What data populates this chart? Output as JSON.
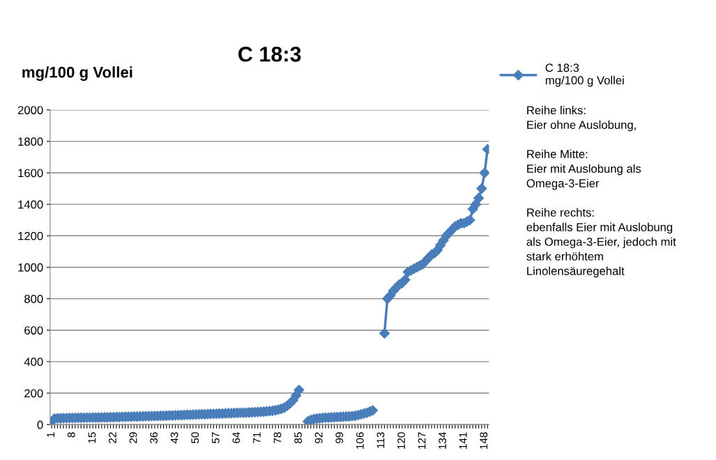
{
  "chart_data": {
    "type": "line",
    "title": "C 18:3",
    "ylabel": "mg/100 g Vollei",
    "categories": [
      "1",
      null,
      null,
      null,
      null,
      null,
      null,
      "8",
      null,
      null,
      null,
      null,
      null,
      null,
      "15",
      null,
      null,
      null,
      null,
      null,
      null,
      "22",
      null,
      null,
      null,
      null,
      null,
      null,
      "29",
      null,
      null,
      null,
      null,
      null,
      null,
      "36",
      null,
      null,
      null,
      null,
      null,
      null,
      "43",
      null,
      null,
      null,
      null,
      null,
      null,
      "50",
      null,
      null,
      null,
      null,
      null,
      null,
      "57",
      null,
      null,
      null,
      null,
      null,
      null,
      "64",
      null,
      null,
      null,
      null,
      null,
      null,
      "71",
      null,
      null,
      null,
      null,
      null,
      null,
      "78",
      null,
      null,
      null,
      null,
      null,
      null,
      "85",
      null,
      null,
      null,
      null,
      null,
      null,
      "92",
      null,
      null,
      null,
      null,
      null,
      null,
      "99",
      null,
      null,
      null,
      null,
      null,
      null,
      "106",
      null,
      null,
      null,
      null,
      null,
      null,
      "113",
      null,
      null,
      null,
      null,
      null,
      null,
      "120",
      null,
      null,
      null,
      null,
      null,
      null,
      "127",
      null,
      null,
      null,
      null,
      null,
      null,
      "134",
      null,
      null,
      null,
      null,
      null,
      null,
      "141",
      null,
      null,
      null,
      null,
      null,
      null,
      "148",
      null
    ],
    "series": [
      {
        "name": "C 18:3\nmg/100 g Vollei",
        "color": "#4a7ebb",
        "values": [
          20,
          38,
          40,
          40,
          41,
          41,
          42,
          42,
          42,
          43,
          43,
          44,
          44,
          44,
          45,
          45,
          45,
          46,
          46,
          46,
          47,
          47,
          48,
          48,
          49,
          49,
          50,
          50,
          51,
          51,
          52,
          52,
          53,
          53,
          54,
          55,
          55,
          56,
          56,
          57,
          58,
          58,
          59,
          60,
          60,
          61,
          62,
          62,
          63,
          64,
          65,
          66,
          66,
          67,
          68,
          68,
          69,
          70,
          70,
          71,
          72,
          72,
          73,
          74,
          75,
          75,
          76,
          77,
          78,
          79,
          80,
          81,
          82,
          84,
          86,
          88,
          91,
          95,
          100,
          108,
          120,
          135,
          155,
          185,
          220,
          null,
          null,
          20,
          30,
          35,
          38,
          40,
          42,
          44,
          45,
          46,
          47,
          48,
          49,
          50,
          51,
          52,
          54,
          56,
          60,
          65,
          70,
          75,
          82,
          90,
          null,
          null,
          null,
          580,
          800,
          820,
          850,
          870,
          890,
          900,
          920,
          970,
          980,
          990,
          1000,
          1010,
          1020,
          1040,
          1060,
          1080,
          1090,
          1110,
          1140,
          1170,
          1200,
          1220,
          1240,
          1260,
          1270,
          1280,
          1280,
          1290,
          1300,
          1370,
          1400,
          1440,
          1500,
          1600,
          1750
        ]
      }
    ],
    "ylim": [
      0,
      2000
    ],
    "yticks": [
      0,
      200,
      400,
      600,
      800,
      1000,
      1200,
      1400,
      1600,
      1800,
      2000
    ],
    "grid": "y",
    "legend": "right",
    "marker": "diamond",
    "line_style": "solid",
    "annotations": [
      "Reihe links:\nEier ohne Auslobung,\n\nReihe Mitte:\nEier mit Auslobung als\nOmega-3-Eier\n\nReihe rechts:\nebenfalls Eier mit Auslobung\nals Omega-3-Eier, jedoch mit\nstark erhöhtem\nLinolensäuregehalt"
    ]
  }
}
